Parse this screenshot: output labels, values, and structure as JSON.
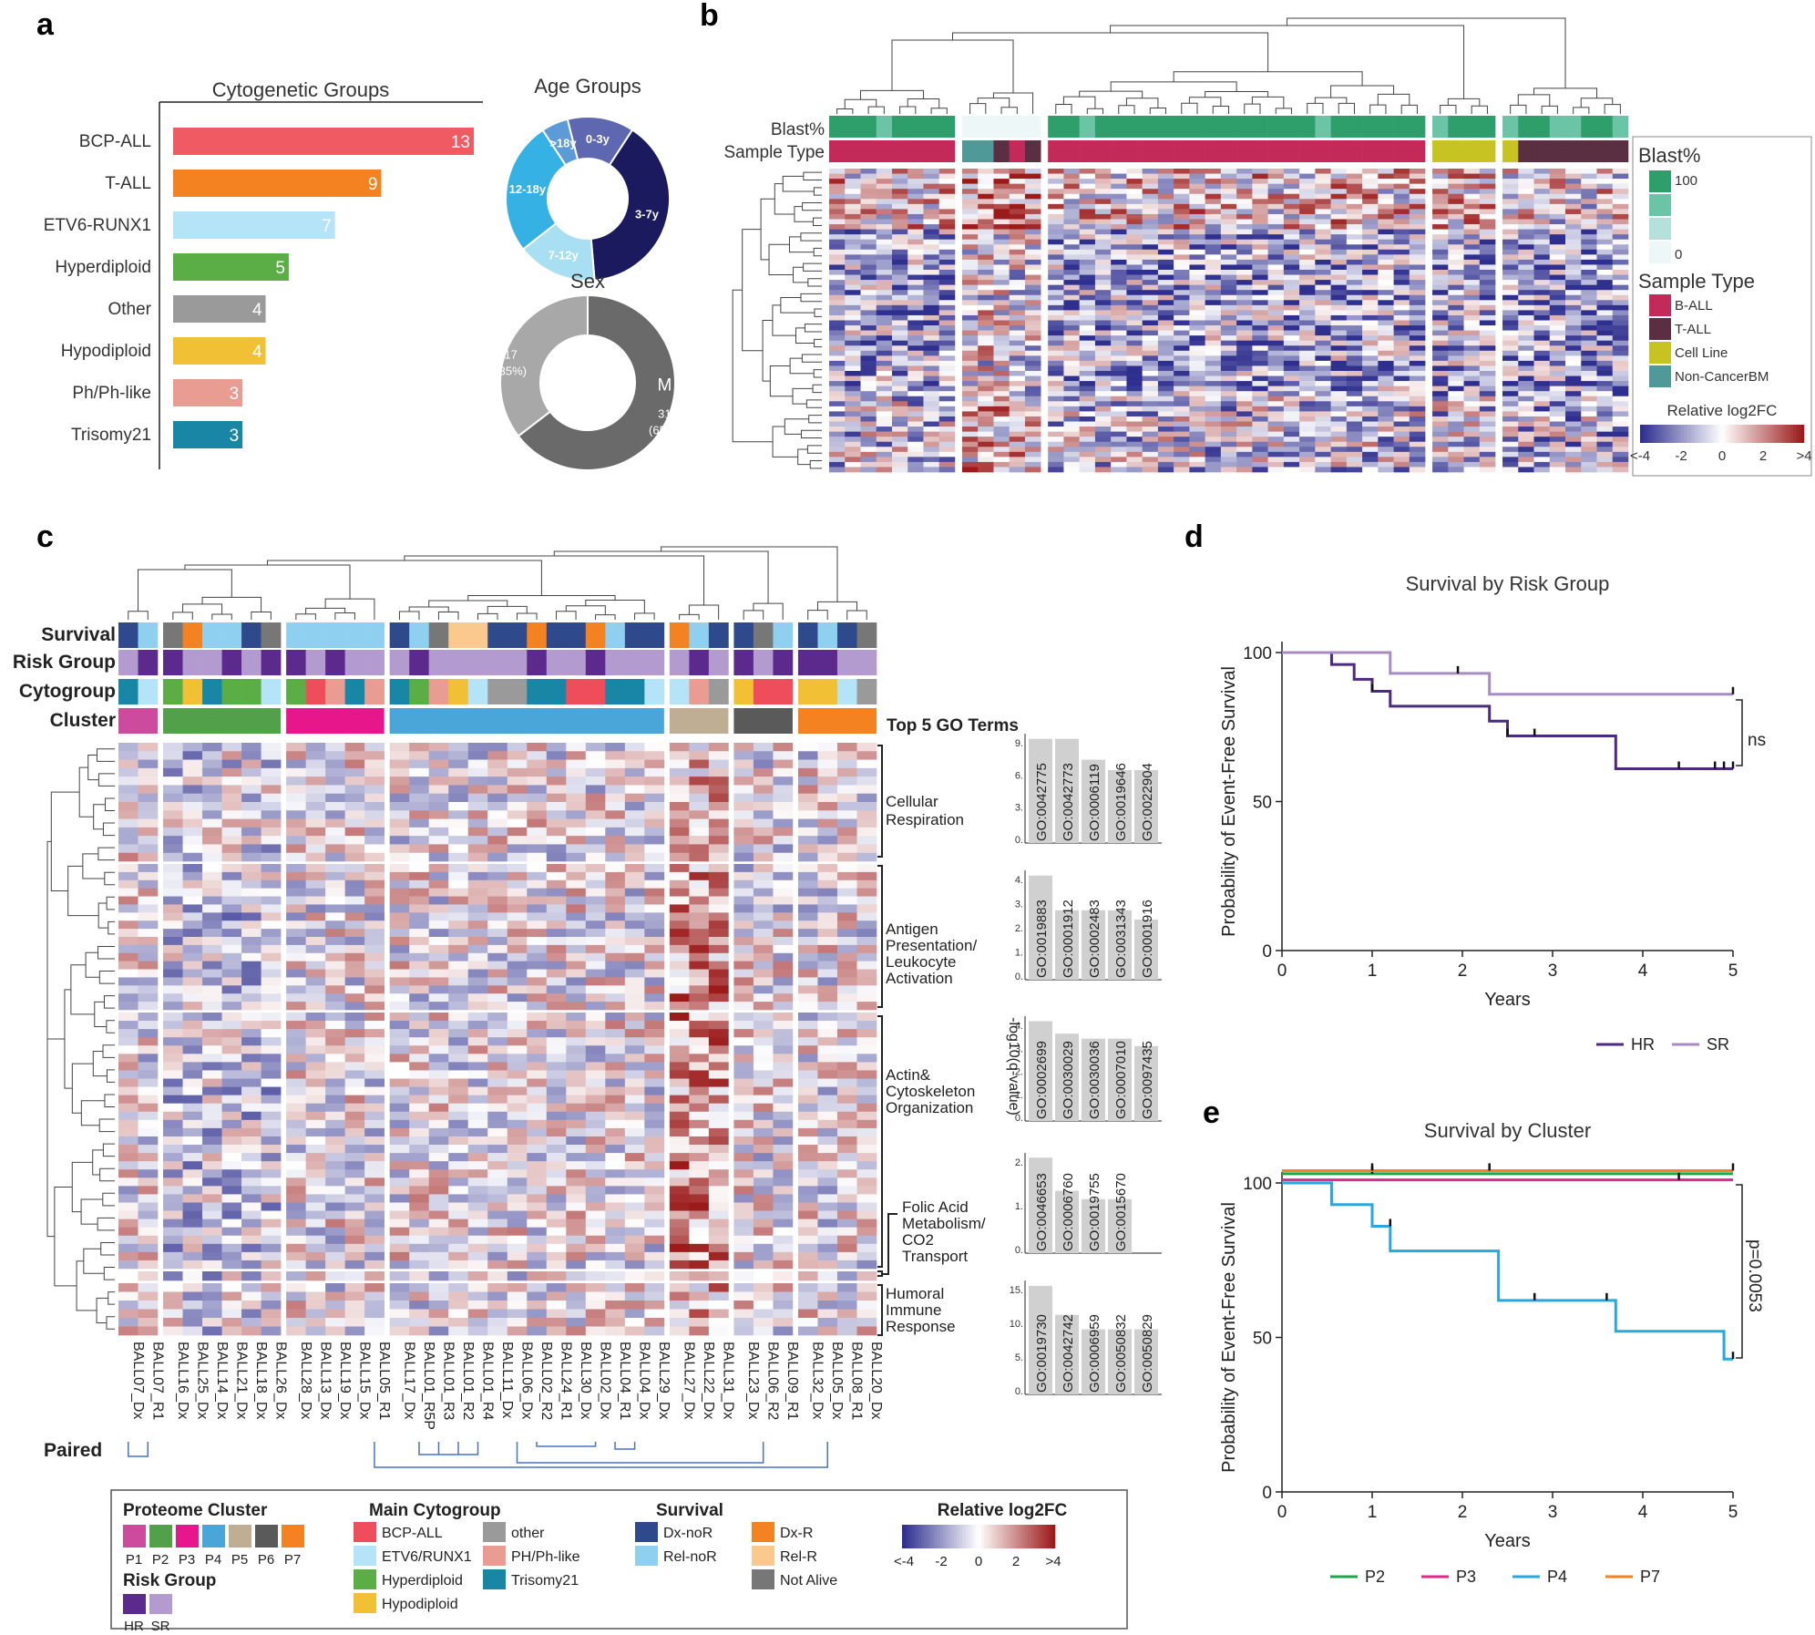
{
  "panel_labels": [
    "a",
    "b",
    "c",
    "d",
    "e"
  ],
  "chart_data": [
    {
      "panel": "a",
      "type": "bar",
      "orientation": "horizontal",
      "title": "Cytogenetic Groups",
      "categories": [
        "BCP-ALL",
        "T-ALL",
        "ETV6-RUNX1",
        "Hyperdiploid",
        "Other",
        "Hypodiploid",
        "Ph/Ph-like",
        "Trisomy21"
      ],
      "values": [
        13,
        9,
        7,
        5,
        4,
        4,
        3,
        3
      ],
      "colors": [
        "#f05a63",
        "#f58220",
        "#b5e3f8",
        "#5aae45",
        "#9a9a9a",
        "#f2c035",
        "#e89c92",
        "#1a86a6"
      ],
      "xlim": [
        0,
        13
      ]
    },
    {
      "panel": "a",
      "type": "pie",
      "donut": true,
      "title": "Age Groups",
      "labels": [
        "0-3y",
        "3-7y",
        "7-12y",
        "12-18y",
        ">18y"
      ],
      "values": [
        5,
        15,
        6,
        10,
        2
      ],
      "colors": [
        "#5e68b0",
        "#1c1a5e",
        "#a9dff2",
        "#36b1e3",
        "#5a9bd8"
      ]
    },
    {
      "panel": "a",
      "type": "pie",
      "donut": true,
      "title": "Sex",
      "labels": [
        "M",
        "F"
      ],
      "values": [
        31,
        17
      ],
      "value_labels": [
        "31",
        "17"
      ],
      "percent_labels": [
        "(65%)",
        "(35%)"
      ],
      "colors": [
        "#6a6a6a",
        "#a8a8a8"
      ]
    },
    {
      "panel": "b",
      "type": "heatmap",
      "row_annotation_labels": [
        "Blast%",
        "Sample Type"
      ],
      "legend_blast": {
        "title": "Blast%",
        "labels": [
          "100",
          "0"
        ],
        "colors": [
          "#2e9e6b",
          "#6cc4a6",
          "#b6e0dc",
          "#eef7f7"
        ]
      },
      "legend_sample_type": {
        "title": "Sample Type",
        "labels": [
          "B-ALL",
          "T-ALL",
          "Cell Line",
          "Non-CancerBM"
        ],
        "colors": [
          "#c32a5a",
          "#5b2f42",
          "#c7c322",
          "#4f9a98"
        ]
      },
      "colorbar": {
        "title": "Relative log2FC",
        "ticks": [
          "<-4",
          "-2",
          "0",
          "2",
          ">4"
        ],
        "colors": [
          "#2f2f8f",
          "#ffffff",
          "#9b1b1b"
        ]
      },
      "column_groups": [
        {
          "n": 8,
          "sample_type": "B-ALL",
          "blast": "high"
        },
        {
          "n": 5,
          "sample_type": "Non-CancerBM",
          "blast": "low"
        },
        {
          "n": 24,
          "sample_type": "B-ALL",
          "blast": "high"
        },
        {
          "n": 4,
          "sample_type": "Cell Line",
          "blast": "high"
        },
        {
          "n": 8,
          "sample_type": "T-ALL",
          "blast": "high"
        }
      ]
    },
    {
      "panel": "c",
      "type": "heatmap",
      "row_annotation_labels": [
        "Survival",
        "Risk Group",
        "Cytogroup",
        "Cluster"
      ],
      "samples": [
        "BALL07_Dx",
        "BALL07_R1",
        "BALL16_Dx",
        "BALL25_Dx",
        "BALL14_Dx",
        "BALL21_Dx",
        "BALL18_Dx",
        "BALL26_Dx",
        "BALL28_Dx",
        "BALL13_Dx",
        "BALL19_Dx",
        "BALL15_Dx",
        "BALL05_R1",
        "BALL17_Dx",
        "BALL01_R5P",
        "BALL01_R3",
        "BALL01_R2",
        "BALL01_R4",
        "BALL11_Dx",
        "BALL06_Dx",
        "BALL02_R2",
        "BALL24_R1",
        "BALL30_Dx",
        "BALL02_Dx",
        "BALL04_R1",
        "BALL04_Dx",
        "BALL29_Dx",
        "BALL27_Dx",
        "BALL22_Dx",
        "BALL31_Dx",
        "BALL23_Dx",
        "BALL06_R2",
        "BALL09_R1",
        "BALL32_Dx",
        "BALL05_Dx",
        "BALL08_R1",
        "BALL20_Dx"
      ],
      "clusters": [
        {
          "name": "P1",
          "size": 2
        },
        {
          "name": "P2",
          "size": 6
        },
        {
          "name": "P3",
          "size": 5
        },
        {
          "name": "P4",
          "size": 14
        },
        {
          "name": "P5",
          "size": 3
        },
        {
          "name": "P6",
          "size": 3
        },
        {
          "name": "P7",
          "size": 4
        }
      ],
      "module_labels": [
        "Cellular Respiration",
        "Antigen Presentation/ Leukocyte Activation",
        "Actin& Cytoskeleton Organization",
        "Folic Acid Metabolism/ CO2 Transport",
        "Humoral Immune Response"
      ],
      "go_header": "Top 5 GO Terms",
      "go_axis_label": "-log10(q-value)",
      "go_terms": [
        {
          "ticks": [
            "9.",
            "6.",
            "3.",
            "0."
          ],
          "terms": [
            "GO:0042775",
            "GO:0042773",
            "GO:0006119",
            "GO:0019646",
            "GO:0022904"
          ],
          "values": [
            10,
            10,
            8,
            7,
            7
          ]
        },
        {
          "ticks": [
            "4.",
            "3.",
            "2.",
            "1.",
            "0."
          ],
          "terms": [
            "GO:0019883",
            "GO:0001912",
            "GO:0002483",
            "GO:0031343",
            "GO:0001916"
          ],
          "values": [
            4.5,
            3.0,
            3.0,
            3.0,
            2.6
          ]
        },
        {
          "ticks": [
            "4.",
            "3.",
            "2.",
            "1.",
            "0."
          ],
          "terms": [
            "GO:0002699",
            "GO:0030029",
            "GO:0030036",
            "GO:0007010",
            "GO:0097435"
          ],
          "values": [
            4.0,
            3.5,
            3.3,
            3.3,
            3.0
          ]
        },
        {
          "ticks": [
            "2.",
            "1.",
            "0."
          ],
          "terms": [
            "GO:0046653",
            "GO:0006760",
            "GO:0019755",
            "GO:0015670"
          ],
          "values": [
            2.3,
            1.5,
            1.3,
            1.3
          ]
        },
        {
          "ticks": [
            "15.",
            "10.",
            "5.",
            "0."
          ],
          "terms": [
            "GO:0019730",
            "GO:0042742",
            "GO:0006959",
            "GO:0050832",
            "GO:0050829"
          ],
          "values": [
            15,
            11,
            9,
            9,
            9
          ]
        }
      ],
      "paired_label": "Paired"
    },
    {
      "panel": "d",
      "type": "line",
      "subtype": "kaplan-meier",
      "title": "Survival by Risk Group",
      "xlabel": "Years",
      "ylabel": "Probability of Event-Free Survival",
      "xlim": [
        0,
        5
      ],
      "ylim": [
        0,
        100
      ],
      "xticks": [
        0,
        1,
        2,
        3,
        4,
        5
      ],
      "yticks": [
        0,
        50,
        100
      ],
      "series": [
        {
          "name": "HR",
          "color": "#4b2a80",
          "x": [
            0,
            0.55,
            0.8,
            1.0,
            1.2,
            2.3,
            2.5,
            3.7,
            5.0
          ],
          "y": [
            100,
            96,
            91,
            87,
            82,
            77,
            72,
            61,
            61
          ],
          "censor_x": [
            1.0,
            2.5,
            2.8,
            4.4,
            4.8,
            4.9,
            5.0
          ],
          "censor_y": [
            87,
            72,
            72,
            61,
            61,
            61,
            61
          ]
        },
        {
          "name": "SR",
          "color": "#a98bc4",
          "x": [
            0,
            1.2,
            2.3,
            5.0
          ],
          "y": [
            100,
            93,
            86,
            86
          ],
          "censor_x": [
            1.95,
            5.0
          ],
          "censor_y": [
            93,
            86
          ]
        }
      ],
      "annotation": "ns"
    },
    {
      "panel": "e",
      "type": "line",
      "subtype": "kaplan-meier",
      "title": "Survival by Cluster",
      "xlabel": "Years",
      "ylabel": "Probability of Event-Free Survival",
      "xlim": [
        0,
        5
      ],
      "ylim": [
        0,
        100
      ],
      "xticks": [
        0,
        1,
        2,
        3,
        4,
        5
      ],
      "yticks": [
        0,
        50,
        100
      ],
      "series": [
        {
          "name": "P2",
          "color": "#1fa64b",
          "x": [
            0,
            5.0
          ],
          "y": [
            103,
            103
          ],
          "censor_x": [
            1.0
          ],
          "censor_y": [
            103
          ]
        },
        {
          "name": "P3",
          "color": "#e02a8a",
          "x": [
            0,
            5.0
          ],
          "y": [
            101,
            101
          ],
          "censor_x": [
            4.4
          ],
          "censor_y": [
            101
          ]
        },
        {
          "name": "P4",
          "color": "#29a8e0",
          "x": [
            0,
            0.55,
            1.0,
            1.2,
            2.3,
            2.4,
            3.7,
            4.9,
            5.0
          ],
          "y": [
            100,
            93,
            86,
            78,
            78,
            62,
            52,
            43,
            43
          ],
          "censor_x": [
            1.2,
            2.8,
            3.6,
            5.0
          ],
          "censor_y": [
            86,
            62,
            62,
            43
          ]
        },
        {
          "name": "P7",
          "color": "#f58220",
          "x": [
            0,
            5.0
          ],
          "y": [
            104,
            104
          ],
          "censor_x": [
            1.0,
            2.3,
            5.0
          ],
          "censor_y": [
            104,
            104,
            104
          ]
        }
      ],
      "annotation": "p=0.0053"
    }
  ],
  "legend_c": {
    "proteome_cluster": {
      "title": "Proteome Cluster",
      "labels": [
        "P1",
        "P2",
        "P3",
        "P4",
        "P5",
        "P6",
        "P7"
      ],
      "colors": [
        "#cc4b9c",
        "#52a04a",
        "#e8168b",
        "#4aa6d9",
        "#bfae94",
        "#5a5a5a",
        "#f58220"
      ]
    },
    "risk_group": {
      "title": "Risk Group",
      "labels": [
        "HR",
        "SR"
      ],
      "colors": [
        "#5b2a8c",
        "#b39bcf"
      ]
    },
    "main_cytogroup": {
      "title": "Main Cytogroup",
      "labels": [
        "BCP-ALL",
        "ETV6/RUNX1",
        "Hyperdiploid",
        "Hypodiploid",
        "other",
        "PH/Ph-like",
        "Trisomy21"
      ],
      "colors": [
        "#ef4d5c",
        "#b5e3f8",
        "#5aae45",
        "#f2c035",
        "#9a9a9a",
        "#e89c92",
        "#1a86a6"
      ]
    },
    "survival": {
      "title": "Survival",
      "labels": [
        "Dx-noR",
        "Rel-noR",
        "Dx-R",
        "Rel-R",
        "Not Alive"
      ],
      "colors": [
        "#2f4a8c",
        "#8fd0f0",
        "#f58220",
        "#fbc98e",
        "#777777"
      ]
    },
    "colorbar": {
      "title": "Relative log2FC",
      "ticks": [
        "<-4",
        "-2",
        "0",
        "2",
        ">4"
      ]
    }
  },
  "colors": {
    "heat_low": "#2f2f8f",
    "heat_mid": "#ffffff",
    "heat_high": "#9b1b1b",
    "axis": "#222222",
    "go_bar": "#d0d0d0"
  }
}
